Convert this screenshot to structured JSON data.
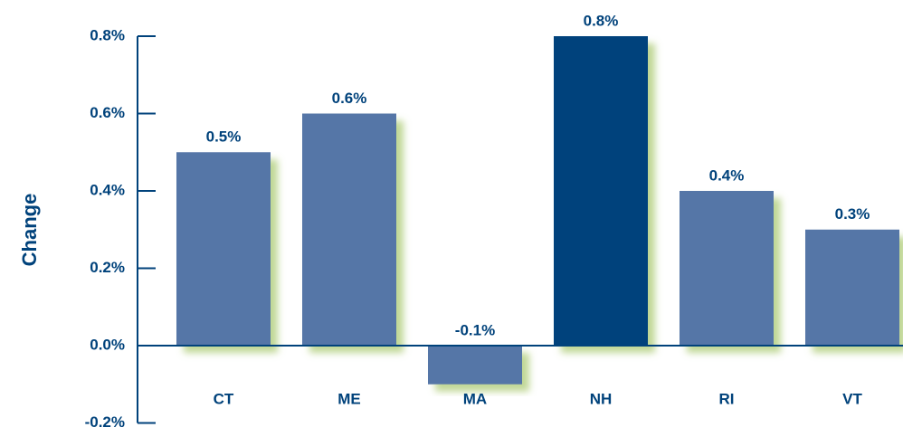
{
  "chart_data": {
    "type": "bar",
    "y_label": "Change",
    "categories": [
      "CT",
      "ME",
      "MA",
      "NH",
      "RI",
      "VT"
    ],
    "values": [
      0.5,
      0.6,
      -0.1,
      0.8,
      0.4,
      0.3
    ],
    "value_labels": [
      "0.5%",
      "0.6%",
      "-0.1%",
      "0.8%",
      "0.4%",
      "0.3%"
    ],
    "colors": [
      "#5576a7",
      "#5576a7",
      "#5576a7",
      "#00427b",
      "#5576a7",
      "#5576a7"
    ],
    "ylim": [
      -0.2,
      0.8
    ],
    "yticks": [
      {
        "value": -0.2,
        "label": "-0.2%"
      },
      {
        "value": 0,
        "label": "0.0%"
      },
      {
        "value": 0.2,
        "label": "0.2%"
      },
      {
        "value": 0.4,
        "label": "0.4%"
      },
      {
        "value": 0.6,
        "label": "0.6%"
      },
      {
        "value": 0.8,
        "label": "0.8%"
      }
    ],
    "grid": false
  }
}
